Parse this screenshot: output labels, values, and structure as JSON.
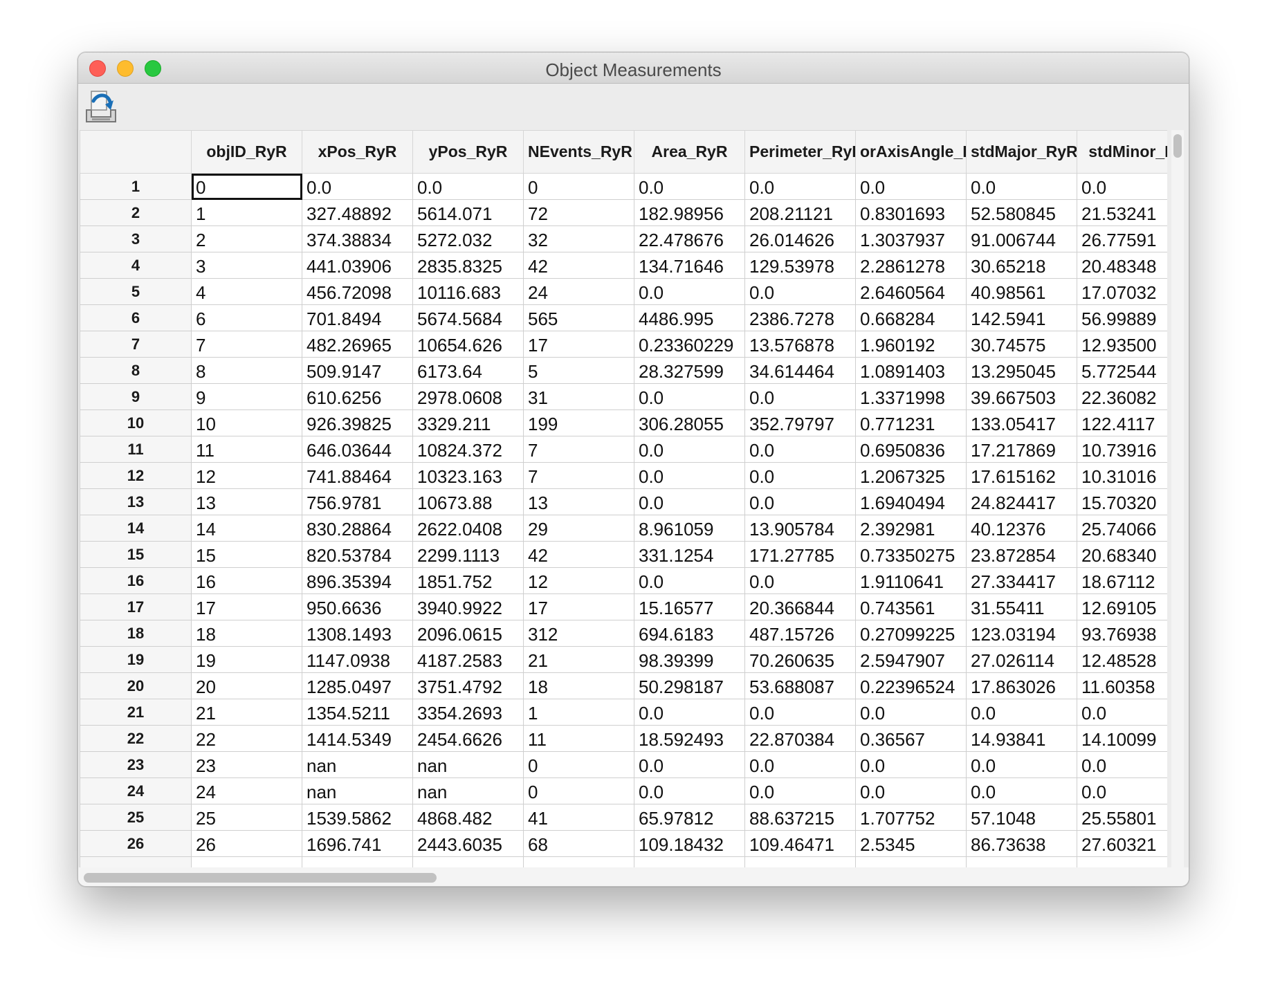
{
  "window": {
    "title": "Object Measurements"
  },
  "toolbar": {
    "export_icon": "save-export-icon"
  },
  "table": {
    "columns": [
      "objID_RyR",
      "xPos_RyR",
      "yPos_RyR",
      "NEvents_RyR",
      "Area_RyR",
      "Perimeter_RyR",
      "orAxisAngle_I",
      "stdMajor_RyR",
      "stdMinor_R"
    ],
    "rows": [
      {
        "h": "1",
        "c": [
          "0",
          "0.0",
          "0.0",
          "0",
          "0.0",
          "0.0",
          "0.0",
          "0.0",
          "0.0"
        ]
      },
      {
        "h": "2",
        "c": [
          "1",
          "327.48892",
          "5614.071",
          "72",
          "182.98956",
          "208.21121",
          "0.8301693",
          "52.580845",
          "21.53241"
        ]
      },
      {
        "h": "3",
        "c": [
          "2",
          "374.38834",
          "5272.032",
          "32",
          "22.478676",
          "26.014626",
          "1.3037937",
          "91.006744",
          "26.77591"
        ]
      },
      {
        "h": "4",
        "c": [
          "3",
          "441.03906",
          "2835.8325",
          "42",
          "134.71646",
          "129.53978",
          "2.2861278",
          "30.65218",
          "20.48348"
        ]
      },
      {
        "h": "5",
        "c": [
          "4",
          "456.72098",
          "10116.683",
          "24",
          "0.0",
          "0.0",
          "2.6460564",
          "40.98561",
          "17.07032"
        ]
      },
      {
        "h": "6",
        "c": [
          "6",
          "701.8494",
          "5674.5684",
          "565",
          "4486.995",
          "2386.7278",
          "0.668284",
          "142.5941",
          "56.99889"
        ]
      },
      {
        "h": "7",
        "c": [
          "7",
          "482.26965",
          "10654.626",
          "17",
          "0.23360229",
          "13.576878",
          "1.960192",
          "30.74575",
          "12.93500"
        ]
      },
      {
        "h": "8",
        "c": [
          "8",
          "509.9147",
          "6173.64",
          "5",
          "28.327599",
          "34.614464",
          "1.0891403",
          "13.295045",
          "5.772544"
        ]
      },
      {
        "h": "9",
        "c": [
          "9",
          "610.6256",
          "2978.0608",
          "31",
          "0.0",
          "0.0",
          "1.3371998",
          "39.667503",
          "22.36082"
        ]
      },
      {
        "h": "10",
        "c": [
          "10",
          "926.39825",
          "3329.211",
          "199",
          "306.28055",
          "352.79797",
          "0.771231",
          "133.05417",
          "122.4117"
        ]
      },
      {
        "h": "11",
        "c": [
          "11",
          "646.03644",
          "10824.372",
          "7",
          "0.0",
          "0.0",
          "0.6950836",
          "17.217869",
          "10.73916"
        ]
      },
      {
        "h": "12",
        "c": [
          "12",
          "741.88464",
          "10323.163",
          "7",
          "0.0",
          "0.0",
          "1.2067325",
          "17.615162",
          "10.31016"
        ]
      },
      {
        "h": "13",
        "c": [
          "13",
          "756.9781",
          "10673.88",
          "13",
          "0.0",
          "0.0",
          "1.6940494",
          "24.824417",
          "15.70320"
        ]
      },
      {
        "h": "14",
        "c": [
          "14",
          "830.28864",
          "2622.0408",
          "29",
          "8.961059",
          "13.905784",
          "2.392981",
          "40.12376",
          "25.74066"
        ]
      },
      {
        "h": "15",
        "c": [
          "15",
          "820.53784",
          "2299.1113",
          "42",
          "331.1254",
          "171.27785",
          "0.73350275",
          "23.872854",
          "20.68340"
        ]
      },
      {
        "h": "16",
        "c": [
          "16",
          "896.35394",
          "1851.752",
          "12",
          "0.0",
          "0.0",
          "1.9110641",
          "27.334417",
          "18.67112"
        ]
      },
      {
        "h": "17",
        "c": [
          "17",
          "950.6636",
          "3940.9922",
          "17",
          "15.16577",
          "20.366844",
          "0.743561",
          "31.55411",
          "12.69105"
        ]
      },
      {
        "h": "18",
        "c": [
          "18",
          "1308.1493",
          "2096.0615",
          "312",
          "694.6183",
          "487.15726",
          "0.27099225",
          "123.03194",
          "93.76938"
        ]
      },
      {
        "h": "19",
        "c": [
          "19",
          "1147.0938",
          "4187.2583",
          "21",
          "98.39399",
          "70.260635",
          "2.5947907",
          "27.026114",
          "12.48528"
        ]
      },
      {
        "h": "20",
        "c": [
          "20",
          "1285.0497",
          "3751.4792",
          "18",
          "50.298187",
          "53.688087",
          "0.22396524",
          "17.863026",
          "11.60358"
        ]
      },
      {
        "h": "21",
        "c": [
          "21",
          "1354.5211",
          "3354.2693",
          "1",
          "0.0",
          "0.0",
          "0.0",
          "0.0",
          "0.0"
        ]
      },
      {
        "h": "22",
        "c": [
          "22",
          "1414.5349",
          "2454.6626",
          "11",
          "18.592493",
          "22.870384",
          "0.36567",
          "14.93841",
          "14.10099"
        ]
      },
      {
        "h": "23",
        "c": [
          "23",
          "nan",
          "nan",
          "0",
          "0.0",
          "0.0",
          "0.0",
          "0.0",
          "0.0"
        ]
      },
      {
        "h": "24",
        "c": [
          "24",
          "nan",
          "nan",
          "0",
          "0.0",
          "0.0",
          "0.0",
          "0.0",
          "0.0"
        ]
      },
      {
        "h": "25",
        "c": [
          "25",
          "1539.5862",
          "4868.482",
          "41",
          "65.97812",
          "88.637215",
          "1.707752",
          "57.1048",
          "25.55801"
        ]
      },
      {
        "h": "26",
        "c": [
          "26",
          "1696.741",
          "2443.6035",
          "68",
          "109.18432",
          "109.46471",
          "2.5345",
          "86.73638",
          "27.60321"
        ]
      },
      {
        "h": "",
        "c": [
          "",
          "",
          "",
          "",
          "",
          "",
          "",
          "",
          ""
        ]
      }
    ]
  }
}
